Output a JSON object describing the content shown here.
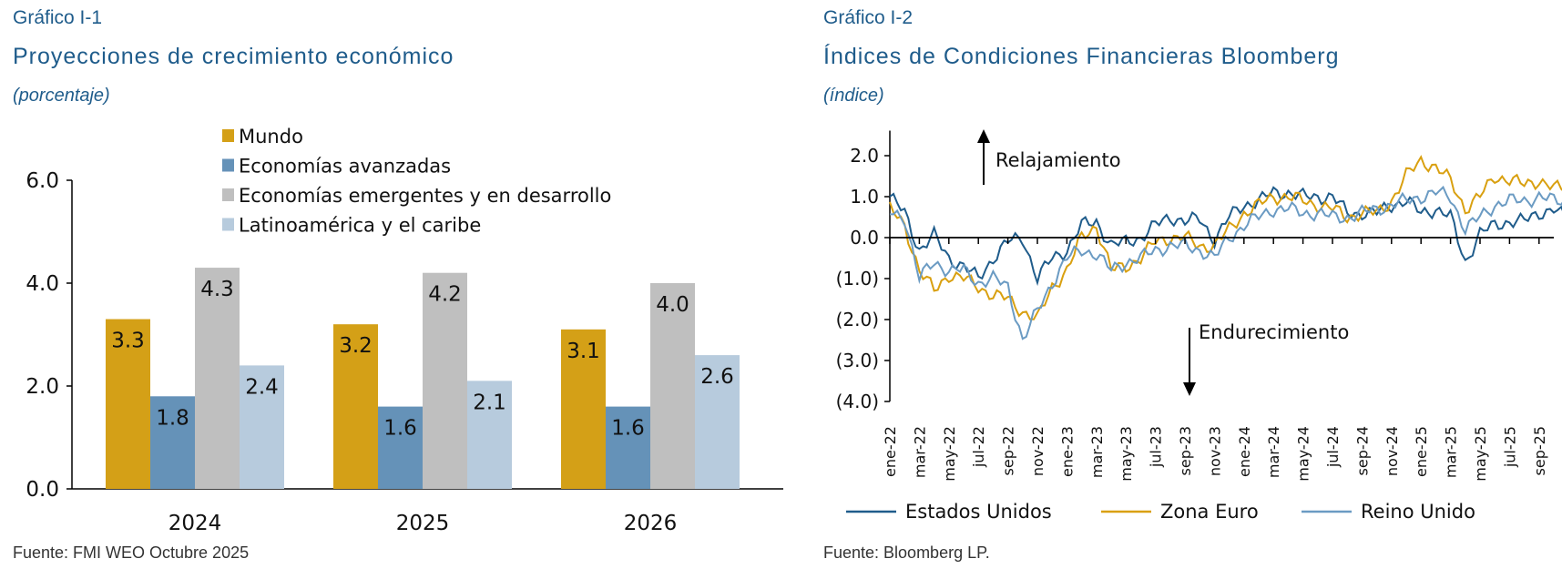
{
  "chart_data": [
    {
      "type": "bar",
      "kicker": "Gráfico I-1",
      "title": "Proyecciones de crecimiento económico",
      "subtitle": "(porcentaje)",
      "source": "Fuente: FMI WEO Octubre 2025",
      "categories": [
        "2024",
        "2025",
        "2026"
      ],
      "ylim": [
        0,
        6
      ],
      "yticks": [
        "0.0",
        "2.0",
        "4.0",
        "6.0"
      ],
      "legend_position": "top",
      "series": [
        {
          "name": "Mundo",
          "color": "#d4a017",
          "values": [
            3.3,
            3.2,
            3.1
          ]
        },
        {
          "name": "Economías avanzadas",
          "color": "#6592b8",
          "values": [
            1.8,
            1.6,
            1.6
          ]
        },
        {
          "name": "Economías emergentes y en desarrollo",
          "color": "#bfbfbf",
          "values": [
            4.3,
            4.2,
            4.0
          ]
        },
        {
          "name": "Latinoamérica y el caribe",
          "color": "#b7cbdd",
          "values": [
            2.4,
            2.1,
            2.6
          ]
        }
      ]
    },
    {
      "type": "line",
      "kicker": "Gráfico I-2",
      "title": "Índices de Condiciones Financieras Bloomberg",
      "subtitle": "(índice)",
      "source": "Fuente: Bloomberg LP.",
      "ylim": [
        -4,
        2.5
      ],
      "yticks": [
        "(4.0)",
        "(3.0)",
        "(2.0)",
        "(1.0)",
        "0.0",
        "1.0",
        "2.0"
      ],
      "ytick_values": [
        -4,
        -3,
        -2,
        -1,
        0,
        1,
        2
      ],
      "xlabels": [
        "ene-22",
        "mar-22",
        "may-22",
        "jul-22",
        "sep-22",
        "nov-22",
        "ene-23",
        "mar-23",
        "may-23",
        "jul-23",
        "sep-23",
        "nov-23",
        "ene-24",
        "mar-24",
        "may-24",
        "jul-24",
        "sep-24",
        "nov-24",
        "ene-25",
        "mar-25",
        "may-25",
        "jul-25",
        "sep-25"
      ],
      "x_unit": "months since ene-22",
      "annotations": {
        "up": "Relajamiento",
        "down": "Endurecimiento"
      },
      "legend_position": "bottom",
      "series": [
        {
          "name": "Estados Unidos",
          "color": "#1f5c8b",
          "values": [
            1.0,
            0.6,
            -0.3,
            0.05,
            -0.5,
            -0.7,
            -1.0,
            -0.5,
            -0.1,
            0.0,
            -1.0,
            -0.5,
            -0.3,
            0.3,
            0.4,
            -0.2,
            -0.1,
            0.0,
            0.3,
            0.5,
            0.4,
            0.45,
            -0.05,
            0.5,
            0.8,
            0.9,
            1.1,
            1.1,
            1.0,
            1.0,
            1.0,
            0.6,
            0.6,
            0.6,
            0.8,
            0.9,
            0.6,
            0.7,
            0.5,
            -0.6,
            0.1,
            0.3,
            0.4,
            0.4,
            0.6,
            0.7,
            0.4
          ]
        },
        {
          "name": "Zona Euro",
          "color": "#d9a010",
          "values": [
            0.7,
            0.3,
            -0.8,
            -1.3,
            -0.9,
            -1.0,
            -1.2,
            -1.4,
            -1.5,
            -1.8,
            -2.0,
            -1.2,
            -0.8,
            0.0,
            0.3,
            -0.8,
            -0.7,
            -0.5,
            -0.1,
            0.0,
            0.0,
            -0.2,
            -0.2,
            0.2,
            0.6,
            0.8,
            1.0,
            1.0,
            0.9,
            0.8,
            0.7,
            0.5,
            0.6,
            0.6,
            0.9,
            1.5,
            1.9,
            1.7,
            1.4,
            0.7,
            1.0,
            1.5,
            1.4,
            1.3,
            1.4,
            1.2,
            1.2
          ]
        },
        {
          "name": "Reino Unido",
          "color": "#6b9bc3",
          "values": [
            0.6,
            0.5,
            -1.0,
            -0.6,
            -0.8,
            -0.8,
            -1.1,
            -1.0,
            -1.2,
            -2.5,
            -1.8,
            -1.1,
            -0.5,
            -0.3,
            -0.4,
            -0.8,
            -0.6,
            -0.5,
            -0.3,
            -0.2,
            -0.2,
            -0.3,
            -0.5,
            0.0,
            0.3,
            0.5,
            0.7,
            0.7,
            0.6,
            0.6,
            0.5,
            0.5,
            0.6,
            0.7,
            0.8,
            0.9,
            1.0,
            1.1,
            1.0,
            0.2,
            0.5,
            0.8,
            0.9,
            0.9,
            1.0,
            0.9,
            0.9
          ]
        }
      ]
    }
  ]
}
